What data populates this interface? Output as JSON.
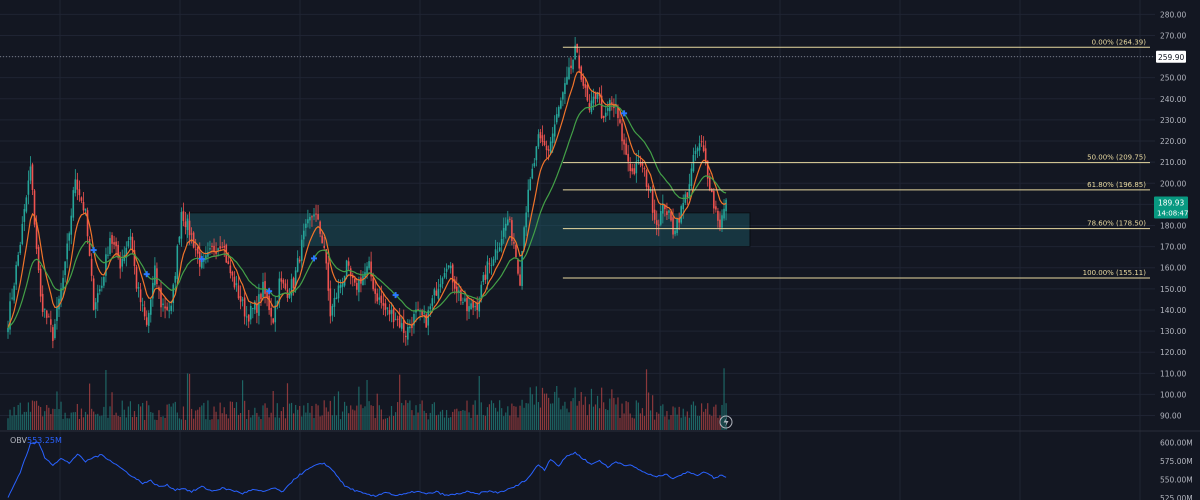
{
  "colors": {
    "background": "#131722",
    "grid": "#1f2433",
    "up": "#26a69a",
    "down": "#ef5350",
    "fib": "#e8d9a0",
    "ema_fast": "#f2742b",
    "ema_slow": "#43a047",
    "zone_fill": "#1c5a66",
    "obv": "#2962ff",
    "marker": "#2979ff",
    "axis_text": "#b2b5be",
    "current_price_bg": "#089981",
    "marker_label_bg": "#ffffff"
  },
  "chart_data": {
    "type": "candlestick",
    "price_axis": {
      "ticks": [
        90,
        100,
        110,
        120,
        130,
        140,
        150,
        160,
        170,
        180,
        190,
        200,
        210,
        220,
        230,
        240,
        250,
        260,
        270,
        280
      ],
      "tick_labels": [
        "90.00",
        "100.00",
        "110.00",
        "120.00",
        "130.00",
        "140.00",
        "150.00",
        "160.00",
        "170.00",
        "180.00",
        "190.00",
        "200.00",
        "210.00",
        "220.00",
        "230.00",
        "240.00",
        "250.00",
        "260.00",
        "270.00",
        "280.00"
      ],
      "range": [
        86,
        283
      ]
    },
    "fib_levels": [
      {
        "label": "0.00% (264.39)",
        "price": 264.39
      },
      {
        "label": "50.00% (209.75)",
        "price": 209.75
      },
      {
        "label": "61.80% (196.85)",
        "price": 196.85
      },
      {
        "label": "78.60% (178.50)",
        "price": 178.5
      },
      {
        "label": "100.00% (155.11)",
        "price": 155.11
      }
    ],
    "price_marker": {
      "label": "259.90",
      "price": 259.9
    },
    "current_price": {
      "label": "189.93",
      "sublabel": "14:08:47",
      "price": 189.93
    },
    "zone": {
      "top": 186,
      "bottom": 170
    },
    "price_path": [
      [
        0,
        135
      ],
      [
        6,
        172
      ],
      [
        11,
        207
      ],
      [
        16,
        145
      ],
      [
        22,
        128
      ],
      [
        28,
        160
      ],
      [
        33,
        203
      ],
      [
        38,
        185
      ],
      [
        42,
        143
      ],
      [
        46,
        152
      ],
      [
        50,
        175
      ],
      [
        55,
        162
      ],
      [
        60,
        176
      ],
      [
        63,
        152
      ],
      [
        68,
        132
      ],
      [
        72,
        158
      ],
      [
        75,
        143
      ],
      [
        80,
        140
      ],
      [
        85,
        187
      ],
      [
        90,
        175
      ],
      [
        95,
        160
      ],
      [
        100,
        168
      ],
      [
        105,
        173
      ],
      [
        108,
        160
      ],
      [
        112,
        150
      ],
      [
        117,
        137
      ],
      [
        122,
        142
      ],
      [
        125,
        150
      ],
      [
        130,
        136
      ],
      [
        133,
        153
      ],
      [
        137,
        149
      ],
      [
        140,
        153
      ],
      [
        145,
        175
      ],
      [
        150,
        187
      ],
      [
        155,
        170
      ],
      [
        158,
        138
      ],
      [
        162,
        150
      ],
      [
        166,
        160
      ],
      [
        170,
        150
      ],
      [
        173,
        155
      ],
      [
        177,
        160
      ],
      [
        180,
        148
      ],
      [
        185,
        140
      ],
      [
        190,
        137
      ],
      [
        195,
        129
      ],
      [
        200,
        138
      ],
      [
        205,
        135
      ],
      [
        210,
        150
      ],
      [
        215,
        163
      ],
      [
        220,
        150
      ],
      [
        225,
        140
      ],
      [
        230,
        143
      ],
      [
        235,
        160
      ],
      [
        240,
        170
      ],
      [
        245,
        183
      ],
      [
        248,
        172
      ],
      [
        251,
        155
      ],
      [
        253,
        182
      ],
      [
        256,
        200
      ],
      [
        260,
        220
      ],
      [
        265,
        216
      ],
      [
        270,
        235
      ],
      [
        274,
        248
      ],
      [
        278,
        262
      ],
      [
        281,
        252
      ],
      [
        285,
        233
      ],
      [
        289,
        245
      ],
      [
        292,
        228
      ],
      [
        295,
        238
      ],
      [
        298,
        235
      ],
      [
        302,
        217
      ],
      [
        306,
        205
      ],
      [
        310,
        210
      ],
      [
        314,
        198
      ],
      [
        318,
        181
      ],
      [
        322,
        190
      ],
      [
        326,
        178
      ],
      [
        330,
        187
      ],
      [
        333,
        196
      ],
      [
        337,
        215
      ],
      [
        340,
        218
      ],
      [
        343,
        205
      ],
      [
        346,
        190
      ],
      [
        349,
        181
      ],
      [
        351,
        187
      ],
      [
        352,
        190
      ]
    ],
    "obv": {
      "label": "OBV",
      "value_label": "553.25M",
      "ticks": [
        525,
        550,
        575,
        600
      ],
      "tick_labels": [
        "525.00M",
        "550.00M",
        "575.00M",
        "600.00M"
      ],
      "range": [
        522,
        606
      ],
      "path": [
        [
          0,
          525
        ],
        [
          6,
          560
        ],
        [
          11,
          598
        ],
        [
          15,
          600
        ],
        [
          18,
          580
        ],
        [
          22,
          570
        ],
        [
          26,
          578
        ],
        [
          30,
          572
        ],
        [
          34,
          584
        ],
        [
          38,
          574
        ],
        [
          42,
          580
        ],
        [
          46,
          583
        ],
        [
          50,
          576
        ],
        [
          54,
          568
        ],
        [
          58,
          560
        ],
        [
          62,
          552
        ],
        [
          66,
          545
        ],
        [
          70,
          548
        ],
        [
          74,
          540
        ],
        [
          78,
          542
        ],
        [
          82,
          536
        ],
        [
          86,
          538
        ],
        [
          90,
          533
        ],
        [
          95,
          540
        ],
        [
          100,
          534
        ],
        [
          105,
          538
        ],
        [
          110,
          535
        ],
        [
          115,
          531
        ],
        [
          120,
          536
        ],
        [
          125,
          533
        ],
        [
          130,
          538
        ],
        [
          135,
          533
        ],
        [
          140,
          550
        ],
        [
          145,
          560
        ],
        [
          150,
          568
        ],
        [
          155,
          572
        ],
        [
          160,
          560
        ],
        [
          165,
          541
        ],
        [
          170,
          535
        ],
        [
          175,
          530
        ],
        [
          180,
          527
        ],
        [
          185,
          533
        ],
        [
          190,
          528
        ],
        [
          195,
          530
        ],
        [
          200,
          534
        ],
        [
          205,
          530
        ],
        [
          210,
          533
        ],
        [
          215,
          528
        ],
        [
          220,
          530
        ],
        [
          225,
          533
        ],
        [
          230,
          530
        ],
        [
          235,
          534
        ],
        [
          240,
          532
        ],
        [
          245,
          536
        ],
        [
          250,
          542
        ],
        [
          255,
          552
        ],
        [
          260,
          570
        ],
        [
          263,
          563
        ],
        [
          266,
          578
        ],
        [
          270,
          568
        ],
        [
          274,
          582
        ],
        [
          278,
          586
        ],
        [
          282,
          578
        ],
        [
          286,
          570
        ],
        [
          290,
          576
        ],
        [
          294,
          566
        ],
        [
          298,
          574
        ],
        [
          302,
          570
        ],
        [
          306,
          568
        ],
        [
          310,
          562
        ],
        [
          314,
          557
        ],
        [
          318,
          553
        ],
        [
          322,
          557
        ],
        [
          326,
          552
        ],
        [
          330,
          556
        ],
        [
          334,
          560
        ],
        [
          338,
          556
        ],
        [
          342,
          560
        ],
        [
          346,
          552
        ],
        [
          350,
          556
        ],
        [
          352,
          553
        ]
      ]
    },
    "cross_markers_at_bar": [
      42,
      68,
      95,
      128,
      150,
      190,
      302
    ]
  }
}
